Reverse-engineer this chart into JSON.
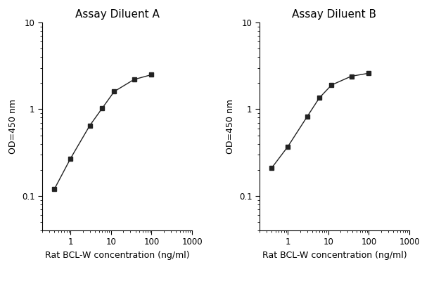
{
  "panel_A": {
    "title": "Assay Diluent A",
    "x": [
      0.4,
      1,
      3,
      6,
      12,
      37,
      100
    ],
    "y": [
      0.12,
      0.27,
      0.65,
      1.02,
      1.6,
      2.2,
      2.5
    ]
  },
  "panel_B": {
    "title": "Assay Diluent B",
    "x": [
      0.4,
      1,
      3,
      6,
      12,
      37,
      100
    ],
    "y": [
      0.21,
      0.37,
      0.82,
      1.35,
      1.9,
      2.4,
      2.6
    ]
  },
  "xlabel": "Rat BCL-W concentration (ng/ml)",
  "ylabel": "OD=450 nm",
  "xlim": [
    0.2,
    1000
  ],
  "ylim": [
    0.04,
    10
  ],
  "line_color": "#222222",
  "marker": "s",
  "markersize": 4,
  "background_color": "#ffffff",
  "title_fontsize": 11,
  "label_fontsize": 9,
  "tick_fontsize": 8.5
}
